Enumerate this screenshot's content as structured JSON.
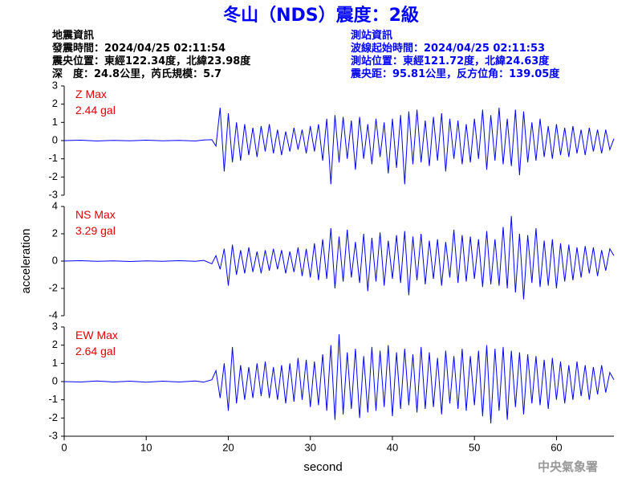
{
  "title": "冬山（NDS）震度：2級",
  "header": {
    "left": [
      "地震資訊",
      "發震時間：2024/04/25 02:11:54",
      "震央位置：東經122.34度，北緯23.98度",
      "深　度：24.8公里，芮氏規模：5.7"
    ],
    "right": [
      "測站資訊",
      "波線起始時間：2024/04/25 02:11:53",
      "測站位置：東經121.72度，北緯24.63度",
      "震央距：95.81公里，反方位角：139.05度"
    ]
  },
  "watermark": "中央氣象署",
  "chart_data": [
    {
      "type": "line",
      "label": "Z Max",
      "max_label": "2.44 gal",
      "xlim": [
        0,
        67
      ],
      "ylim": [
        -3,
        3
      ],
      "yticks": [
        -3,
        -2,
        -1,
        0,
        1,
        2,
        3
      ],
      "x": [
        0,
        2,
        4,
        6,
        8,
        10,
        12,
        14,
        16,
        17,
        18,
        18.5,
        19,
        19.5,
        20,
        20.5,
        21,
        21.5,
        22,
        22.5,
        23,
        23.5,
        24,
        24.5,
        25,
        25.5,
        26,
        26.5,
        27,
        27.5,
        28,
        28.5,
        29,
        29.5,
        30,
        30.5,
        31,
        31.5,
        32,
        32.5,
        33,
        33.5,
        34,
        34.5,
        35,
        35.5,
        36,
        36.5,
        37,
        37.5,
        38,
        38.5,
        39,
        39.5,
        40,
        40.5,
        41,
        41.5,
        42,
        42.5,
        43,
        43.5,
        44,
        44.5,
        45,
        45.5,
        46,
        46.5,
        47,
        47.5,
        48,
        48.5,
        49,
        49.5,
        50,
        50.5,
        51,
        51.5,
        52,
        52.5,
        53,
        53.5,
        54,
        54.5,
        55,
        55.5,
        56,
        56.5,
        57,
        57.5,
        58,
        58.5,
        59,
        59.5,
        60,
        60.5,
        61,
        61.5,
        62,
        62.5,
        63,
        63.5,
        64,
        64.5,
        65,
        65.5,
        66,
        66.5,
        67
      ],
      "series": [
        {
          "color": "#0000ff",
          "values": [
            0,
            0.02,
            -0.02,
            0.01,
            -0.01,
            0.02,
            -0.01,
            0.01,
            -0.02,
            0.03,
            0.05,
            -0.3,
            1.8,
            -1.7,
            1.5,
            -1.2,
            1.0,
            -1.1,
            0.9,
            -0.8,
            0.7,
            -0.9,
            0.8,
            -0.6,
            0.9,
            -0.7,
            0.6,
            -0.8,
            0.5,
            -0.6,
            0.7,
            -0.5,
            0.6,
            -0.7,
            0.8,
            -0.6,
            0.9,
            -1.1,
            1.2,
            -2.4,
            1.4,
            -1.2,
            1.3,
            -1.0,
            1.1,
            -1.6,
            1.3,
            -1.0,
            0.9,
            -1.3,
            1.2,
            -0.9,
            1.0,
            -1.8,
            1.2,
            -1.5,
            1.4,
            -2.4,
            1.6,
            -1.3,
            1.7,
            -1.2,
            1.1,
            -1.4,
            1.3,
            -1.1,
            1.5,
            -1.7,
            1.2,
            -1.0,
            1.1,
            -1.3,
            0.9,
            -1.2,
            1.2,
            -1.0,
            1.7,
            -1.6,
            1.4,
            -1.1,
            1.8,
            -1.3,
            1.2,
            -1.4,
            1.7,
            -1.9,
            1.6,
            -1.2,
            1.0,
            -1.1,
            1.2,
            -0.9,
            0.8,
            -1.0,
            0.9,
            -0.8,
            0.7,
            -0.9,
            0.8,
            -0.7,
            0.6,
            -0.8,
            0.7,
            -0.6,
            0.6,
            -0.7,
            0.6,
            -0.5,
            0.1
          ]
        }
      ]
    },
    {
      "type": "line",
      "label": "NS Max",
      "max_label": "3.29 gal",
      "ylabel": "acceleration",
      "xlim": [
        0,
        67
      ],
      "ylim": [
        -4,
        4
      ],
      "yticks": [
        -4,
        -2,
        0,
        2,
        4
      ],
      "x": [
        0,
        2,
        4,
        6,
        8,
        10,
        12,
        14,
        16,
        17,
        18,
        18.5,
        19,
        19.5,
        20,
        20.5,
        21,
        21.5,
        22,
        22.5,
        23,
        23.5,
        24,
        24.5,
        25,
        25.5,
        26,
        26.5,
        27,
        27.5,
        28,
        28.5,
        29,
        29.5,
        30,
        30.5,
        31,
        31.5,
        32,
        32.5,
        33,
        33.5,
        34,
        34.5,
        35,
        35.5,
        36,
        36.5,
        37,
        37.5,
        38,
        38.5,
        39,
        39.5,
        40,
        40.5,
        41,
        41.5,
        42,
        42.5,
        43,
        43.5,
        44,
        44.5,
        45,
        45.5,
        46,
        46.5,
        47,
        47.5,
        48,
        48.5,
        49,
        49.5,
        50,
        50.5,
        51,
        51.5,
        52,
        52.5,
        53,
        53.5,
        54,
        54.5,
        55,
        55.5,
        56,
        56.5,
        57,
        57.5,
        58,
        58.5,
        59,
        59.5,
        60,
        60.5,
        61,
        61.5,
        62,
        62.5,
        63,
        63.5,
        64,
        64.5,
        65,
        65.5,
        66,
        66.5,
        67
      ],
      "series": [
        {
          "color": "#0000ff",
          "values": [
            0,
            0.03,
            -0.02,
            0.02,
            -0.03,
            0.02,
            -0.02,
            0.03,
            -0.02,
            0.05,
            -0.2,
            0.4,
            -0.6,
            0.9,
            -1.8,
            1.2,
            -1.0,
            0.8,
            -0.9,
            1.0,
            -0.8,
            0.7,
            -0.9,
            0.8,
            -0.7,
            0.9,
            -0.6,
            0.8,
            -0.9,
            0.7,
            -0.8,
            1.0,
            -1.1,
            0.9,
            -1.2,
            1.3,
            -1.4,
            1.6,
            -1.3,
            2.4,
            -2.0,
            1.8,
            -1.5,
            2.3,
            -1.2,
            1.4,
            -1.6,
            2.0,
            -2.2,
            1.7,
            -1.5,
            2.1,
            -1.8,
            1.5,
            -1.3,
            1.9,
            -1.6,
            2.2,
            -2.5,
            1.8,
            -1.4,
            2.0,
            -1.7,
            1.5,
            -1.3,
            1.6,
            -1.8,
            1.4,
            -1.2,
            2.3,
            -1.6,
            1.9,
            -1.5,
            1.8,
            -1.3,
            1.6,
            -1.9,
            2.2,
            -1.7,
            1.6,
            -1.8,
            2.5,
            -2.0,
            3.3,
            -2.3,
            2.0,
            -2.8,
            1.9,
            -1.6,
            2.4,
            -1.9,
            1.5,
            -1.8,
            1.6,
            -2.0,
            1.3,
            -1.5,
            1.2,
            -1.4,
            1.0,
            -1.2,
            1.1,
            -0.9,
            1.0,
            -1.1,
            0.8,
            -0.7,
            0.9,
            0.4
          ]
        }
      ]
    },
    {
      "type": "line",
      "label": "EW Max",
      "max_label": "2.64 gal",
      "xlabel": "second",
      "xlim": [
        0,
        67
      ],
      "xticks": [
        0,
        10,
        20,
        30,
        40,
        50,
        60
      ],
      "ylim": [
        -3,
        3
      ],
      "yticks": [
        -3,
        -2,
        -1,
        0,
        1,
        2,
        3
      ],
      "x": [
        0,
        2,
        4,
        6,
        8,
        10,
        12,
        14,
        16,
        17,
        18,
        18.5,
        19,
        19.5,
        20,
        20.5,
        21,
        21.5,
        22,
        22.5,
        23,
        23.5,
        24,
        24.5,
        25,
        25.5,
        26,
        26.5,
        27,
        27.5,
        28,
        28.5,
        29,
        29.5,
        30,
        30.5,
        31,
        31.5,
        32,
        32.5,
        33,
        33.5,
        34,
        34.5,
        35,
        35.5,
        36,
        36.5,
        37,
        37.5,
        38,
        38.5,
        39,
        39.5,
        40,
        40.5,
        41,
        41.5,
        42,
        42.5,
        43,
        43.5,
        44,
        44.5,
        45,
        45.5,
        46,
        46.5,
        47,
        47.5,
        48,
        48.5,
        49,
        49.5,
        50,
        50.5,
        51,
        51.5,
        52,
        52.5,
        53,
        53.5,
        54,
        54.5,
        55,
        55.5,
        56,
        56.5,
        57,
        57.5,
        58,
        58.5,
        59,
        59.5,
        60,
        60.5,
        61,
        61.5,
        62,
        62.5,
        63,
        63.5,
        64,
        64.5,
        65,
        65.5,
        66,
        66.5,
        67
      ],
      "series": [
        {
          "color": "#0000ff",
          "values": [
            0,
            -0.02,
            0.03,
            -0.02,
            0.02,
            -0.03,
            0.02,
            -0.02,
            0.03,
            -0.03,
            0.1,
            0.6,
            -0.9,
            1.0,
            -1.6,
            1.9,
            -1.2,
            0.9,
            -1.0,
            0.8,
            -0.9,
            1.0,
            -0.8,
            1.1,
            -0.9,
            0.8,
            -1.0,
            0.9,
            -1.2,
            1.0,
            -1.1,
            1.3,
            -1.0,
            1.2,
            -1.4,
            1.1,
            -1.3,
            1.5,
            -1.6,
            2.0,
            -2.1,
            2.6,
            -1.8,
            1.6,
            -1.5,
            1.8,
            -2.0,
            1.4,
            -1.7,
            1.9,
            -1.6,
            1.7,
            -1.4,
            2.0,
            -1.9,
            1.6,
            -1.5,
            1.8,
            -1.3,
            1.5,
            -1.7,
            1.9,
            -1.5,
            1.6,
            -1.4,
            1.3,
            -1.8,
            1.7,
            -1.2,
            1.4,
            -1.5,
            1.8,
            -1.6,
            1.4,
            -1.3,
            1.7,
            -1.9,
            2.0,
            -2.3,
            1.8,
            -1.6,
            1.9,
            -2.1,
            1.7,
            -1.4,
            1.6,
            -1.8,
            1.5,
            -1.2,
            1.4,
            -1.3,
            1.2,
            -1.5,
            1.3,
            -1.0,
            1.1,
            -1.2,
            0.9,
            -1.0,
            1.1,
            -0.8,
            0.9,
            -1.0,
            0.8,
            -0.7,
            0.9,
            -0.6,
            0.5,
            0.1
          ]
        }
      ]
    }
  ]
}
